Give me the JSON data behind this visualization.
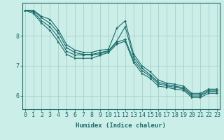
{
  "xlabel": "Humidex (Indice chaleur)",
  "bg_color": "#cceee8",
  "line_color": "#1a6b6b",
  "grid_color": "#aad4cc",
  "x_values": [
    0,
    1,
    2,
    3,
    4,
    5,
    6,
    7,
    8,
    9,
    10,
    11,
    12,
    13,
    14,
    15,
    16,
    17,
    18,
    19,
    20,
    21,
    22,
    23
  ],
  "lines": [
    [
      8.85,
      8.85,
      8.65,
      8.55,
      8.2,
      7.7,
      7.52,
      7.45,
      7.45,
      7.52,
      7.55,
      8.25,
      8.5,
      7.4,
      7.0,
      6.8,
      6.52,
      6.42,
      6.38,
      6.32,
      6.08,
      6.08,
      6.22,
      6.22
    ],
    [
      8.85,
      8.85,
      8.6,
      8.42,
      8.1,
      7.6,
      7.44,
      7.38,
      7.38,
      7.44,
      7.5,
      7.82,
      8.3,
      7.3,
      6.92,
      6.7,
      6.45,
      6.37,
      6.32,
      6.27,
      6.03,
      6.03,
      6.18,
      6.18
    ],
    [
      8.85,
      8.8,
      8.5,
      8.3,
      7.95,
      7.48,
      7.36,
      7.36,
      7.36,
      7.4,
      7.48,
      7.78,
      7.88,
      7.2,
      6.84,
      6.65,
      6.4,
      6.33,
      6.28,
      6.23,
      5.99,
      5.99,
      6.14,
      6.14
    ],
    [
      8.85,
      8.75,
      8.42,
      8.18,
      7.8,
      7.38,
      7.25,
      7.25,
      7.25,
      7.35,
      7.44,
      7.72,
      7.82,
      7.12,
      6.75,
      6.58,
      6.32,
      6.28,
      6.22,
      6.18,
      5.94,
      5.94,
      6.08,
      6.08
    ]
  ],
  "ylim": [
    5.55,
    9.1
  ],
  "xlim": [
    -0.3,
    23.3
  ],
  "yticks": [
    6,
    7,
    8
  ],
  "ytick_labels": [
    "6",
    "7",
    "8"
  ],
  "xticks": [
    0,
    1,
    2,
    3,
    4,
    5,
    6,
    7,
    8,
    9,
    10,
    11,
    12,
    13,
    14,
    15,
    16,
    17,
    18,
    19,
    20,
    21,
    22,
    23
  ],
  "xlabel_fontsize": 6.5,
  "tick_fontsize": 6
}
